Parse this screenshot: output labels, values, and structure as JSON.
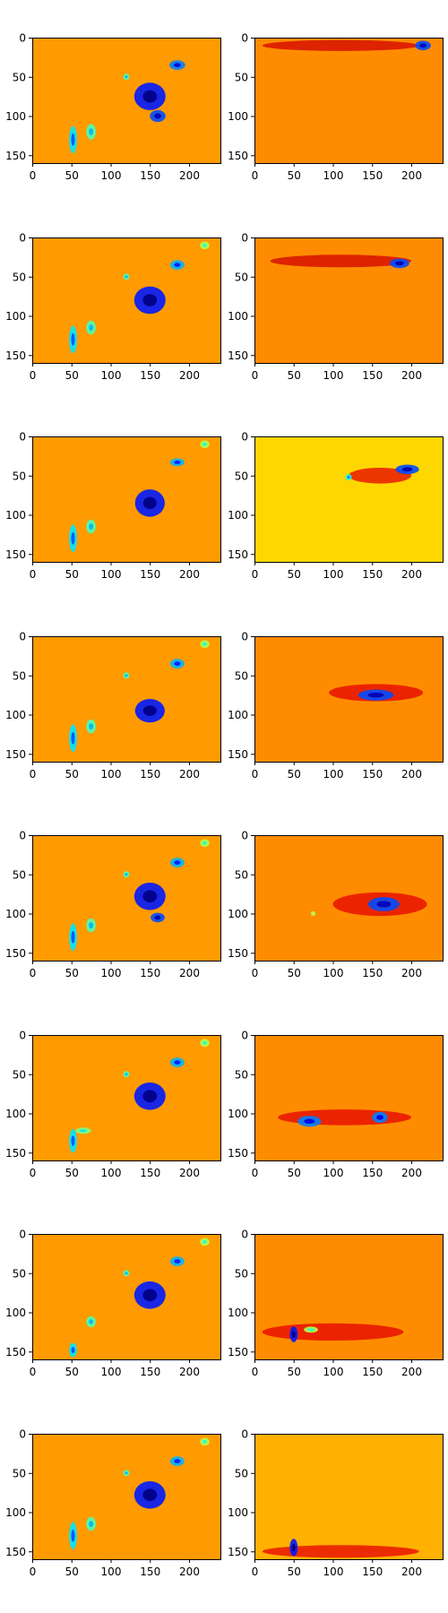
{
  "chart_data": {
    "type": "heatmap",
    "layout": {
      "rows": 8,
      "cols": 2
    },
    "colormap": "jet",
    "x_ticks": [
      "0",
      "50",
      "100",
      "150",
      "200"
    ],
    "y_ticks": [
      "0",
      "50",
      "100",
      "150"
    ],
    "xlim": [
      0,
      240
    ],
    "ylim": [
      160,
      0
    ],
    "base_colors": {
      "left": "#ff9a00",
      "right_default": "#ff8c00",
      "right_row3": "#ffd700",
      "right_row8": "#ffb000"
    },
    "panels": [
      {
        "name": "row1-left",
        "hotspots": [
          {
            "x": 150,
            "y": 75,
            "w": 40,
            "h": 35,
            "level": 0.15
          },
          {
            "x": 160,
            "y": 100,
            "w": 20,
            "h": 15,
            "level": 0.2
          },
          {
            "x": 185,
            "y": 35,
            "w": 20,
            "h": 12,
            "level": 0.25
          },
          {
            "x": 120,
            "y": 50,
            "w": 8,
            "h": 8,
            "level": 0.45
          },
          {
            "x": 52,
            "y": 130,
            "w": 10,
            "h": 35,
            "level": 0.35
          },
          {
            "x": 75,
            "y": 120,
            "w": 12,
            "h": 20,
            "level": 0.45
          }
        ]
      },
      {
        "name": "row1-right",
        "hotspots": [
          {
            "x": 215,
            "y": 10,
            "w": 20,
            "h": 12,
            "level": 0.2
          },
          {
            "x": 110,
            "y": 10,
            "w": 200,
            "h": 14,
            "level": 0.92
          }
        ]
      },
      {
        "name": "row2-left",
        "hotspots": [
          {
            "x": 150,
            "y": 80,
            "w": 40,
            "h": 35,
            "level": 0.15
          },
          {
            "x": 185,
            "y": 35,
            "w": 18,
            "h": 12,
            "level": 0.3
          },
          {
            "x": 120,
            "y": 50,
            "w": 8,
            "h": 8,
            "level": 0.45
          },
          {
            "x": 52,
            "y": 130,
            "w": 10,
            "h": 35,
            "level": 0.35
          },
          {
            "x": 75,
            "y": 115,
            "w": 12,
            "h": 18,
            "level": 0.45
          },
          {
            "x": 220,
            "y": 10,
            "w": 12,
            "h": 10,
            "level": 0.55
          }
        ]
      },
      {
        "name": "row2-right",
        "hotspots": [
          {
            "x": 185,
            "y": 33,
            "w": 25,
            "h": 12,
            "level": 0.2
          },
          {
            "x": 110,
            "y": 30,
            "w": 180,
            "h": 16,
            "level": 0.92
          }
        ]
      },
      {
        "name": "row3-left",
        "hotspots": [
          {
            "x": 150,
            "y": 85,
            "w": 38,
            "h": 35,
            "level": 0.15
          },
          {
            "x": 185,
            "y": 33,
            "w": 18,
            "h": 10,
            "level": 0.3
          },
          {
            "x": 52,
            "y": 130,
            "w": 10,
            "h": 35,
            "level": 0.35
          },
          {
            "x": 75,
            "y": 115,
            "w": 12,
            "h": 18,
            "level": 0.45
          },
          {
            "x": 220,
            "y": 10,
            "w": 12,
            "h": 10,
            "level": 0.55
          }
        ]
      },
      {
        "name": "row3-right",
        "hotspots": [
          {
            "x": 195,
            "y": 42,
            "w": 30,
            "h": 12,
            "level": 0.2
          },
          {
            "x": 120,
            "y": 52,
            "w": 8,
            "h": 8,
            "level": 0.4
          },
          {
            "x": 160,
            "y": 50,
            "w": 80,
            "h": 20,
            "level": 0.9
          }
        ]
      },
      {
        "name": "row4-left",
        "hotspots": [
          {
            "x": 150,
            "y": 95,
            "w": 38,
            "h": 30,
            "level": 0.15
          },
          {
            "x": 120,
            "y": 50,
            "w": 8,
            "h": 8,
            "level": 0.45
          },
          {
            "x": 185,
            "y": 35,
            "w": 18,
            "h": 12,
            "level": 0.3
          },
          {
            "x": 52,
            "y": 130,
            "w": 10,
            "h": 35,
            "level": 0.35
          },
          {
            "x": 75,
            "y": 115,
            "w": 12,
            "h": 18,
            "level": 0.45
          },
          {
            "x": 220,
            "y": 10,
            "w": 12,
            "h": 10,
            "level": 0.55
          }
        ]
      },
      {
        "name": "row4-right",
        "hotspots": [
          {
            "x": 155,
            "y": 75,
            "w": 45,
            "h": 14,
            "level": 0.2
          },
          {
            "x": 155,
            "y": 72,
            "w": 120,
            "h": 22,
            "level": 0.9
          }
        ]
      },
      {
        "name": "row5-left",
        "hotspots": [
          {
            "x": 150,
            "y": 78,
            "w": 40,
            "h": 35,
            "level": 0.15
          },
          {
            "x": 160,
            "y": 105,
            "w": 18,
            "h": 12,
            "level": 0.2
          },
          {
            "x": 120,
            "y": 50,
            "w": 8,
            "h": 8,
            "level": 0.45
          },
          {
            "x": 185,
            "y": 35,
            "w": 18,
            "h": 12,
            "level": 0.3
          },
          {
            "x": 52,
            "y": 130,
            "w": 10,
            "h": 35,
            "level": 0.35
          },
          {
            "x": 75,
            "y": 115,
            "w": 12,
            "h": 18,
            "level": 0.45
          },
          {
            "x": 220,
            "y": 10,
            "w": 12,
            "h": 10,
            "level": 0.55
          }
        ]
      },
      {
        "name": "row5-right",
        "hotspots": [
          {
            "x": 165,
            "y": 88,
            "w": 40,
            "h": 18,
            "level": 0.2
          },
          {
            "x": 75,
            "y": 100,
            "w": 6,
            "h": 6,
            "level": 0.55
          },
          {
            "x": 160,
            "y": 88,
            "w": 120,
            "h": 30,
            "level": 0.9
          }
        ]
      },
      {
        "name": "row6-left",
        "hotspots": [
          {
            "x": 150,
            "y": 78,
            "w": 40,
            "h": 35,
            "level": 0.15
          },
          {
            "x": 120,
            "y": 50,
            "w": 8,
            "h": 8,
            "level": 0.45
          },
          {
            "x": 185,
            "y": 35,
            "w": 18,
            "h": 12,
            "level": 0.3
          },
          {
            "x": 52,
            "y": 135,
            "w": 10,
            "h": 30,
            "level": 0.35
          },
          {
            "x": 65,
            "y": 122,
            "w": 20,
            "h": 8,
            "level": 0.5
          },
          {
            "x": 220,
            "y": 10,
            "w": 12,
            "h": 10,
            "level": 0.55
          }
        ]
      },
      {
        "name": "row6-right",
        "hotspots": [
          {
            "x": 70,
            "y": 110,
            "w": 30,
            "h": 14,
            "level": 0.25
          },
          {
            "x": 160,
            "y": 105,
            "w": 20,
            "h": 14,
            "level": 0.25
          },
          {
            "x": 115,
            "y": 105,
            "w": 170,
            "h": 20,
            "level": 0.9
          }
        ]
      },
      {
        "name": "row7-left",
        "hotspots": [
          {
            "x": 150,
            "y": 78,
            "w": 40,
            "h": 35,
            "level": 0.15
          },
          {
            "x": 120,
            "y": 50,
            "w": 8,
            "h": 8,
            "level": 0.45
          },
          {
            "x": 185,
            "y": 35,
            "w": 18,
            "h": 12,
            "level": 0.3
          },
          {
            "x": 52,
            "y": 148,
            "w": 10,
            "h": 18,
            "level": 0.35
          },
          {
            "x": 75,
            "y": 112,
            "w": 12,
            "h": 14,
            "level": 0.45
          },
          {
            "x": 220,
            "y": 10,
            "w": 12,
            "h": 10,
            "level": 0.55
          }
        ]
      },
      {
        "name": "row7-right",
        "hotspots": [
          {
            "x": 50,
            "y": 128,
            "w": 10,
            "h": 20,
            "level": 0.15
          },
          {
            "x": 72,
            "y": 122,
            "w": 18,
            "h": 8,
            "level": 0.55
          },
          {
            "x": 100,
            "y": 125,
            "w": 180,
            "h": 22,
            "level": 0.9
          }
        ]
      },
      {
        "name": "row8-left",
        "hotspots": [
          {
            "x": 150,
            "y": 78,
            "w": 40,
            "h": 35,
            "level": 0.15
          },
          {
            "x": 120,
            "y": 50,
            "w": 8,
            "h": 8,
            "level": 0.45
          },
          {
            "x": 185,
            "y": 35,
            "w": 18,
            "h": 12,
            "level": 0.3
          },
          {
            "x": 52,
            "y": 130,
            "w": 10,
            "h": 35,
            "level": 0.35
          },
          {
            "x": 75,
            "y": 115,
            "w": 12,
            "h": 18,
            "level": 0.45
          },
          {
            "x": 220,
            "y": 10,
            "w": 12,
            "h": 10,
            "level": 0.55
          }
        ]
      },
      {
        "name": "row8-right",
        "hotspots": [
          {
            "x": 50,
            "y": 145,
            "w": 10,
            "h": 22,
            "level": 0.15
          },
          {
            "x": 110,
            "y": 150,
            "w": 200,
            "h": 16,
            "level": 0.9
          }
        ]
      }
    ]
  }
}
